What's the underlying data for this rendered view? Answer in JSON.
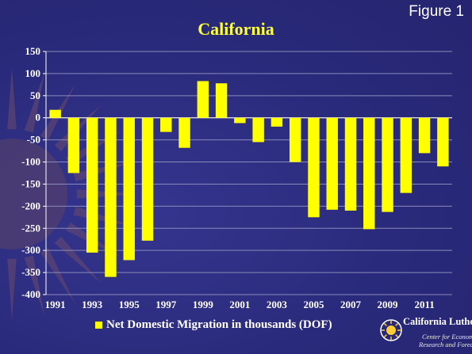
{
  "figure_label": "Figure 1",
  "colors": {
    "background": "#2b2b7e",
    "bar": "#ffff00",
    "title": "#ffff33",
    "grid": "#8a8ab8",
    "text": "#ffffff"
  },
  "logo": {
    "name": "California Lutheran",
    "line1": "Center for Economic",
    "line2": "Research and Forecasting"
  },
  "chart_data": {
    "type": "bar",
    "title": "California",
    "xlabel": "",
    "ylabel": "",
    "ylim": [
      -400,
      150
    ],
    "yticks": [
      150,
      100,
      50,
      0,
      -50,
      -100,
      -150,
      -200,
      -250,
      -300,
      -350,
      -400
    ],
    "categories": [
      "1991",
      "1992",
      "1993",
      "1994",
      "1995",
      "1996",
      "1997",
      "1998",
      "1999",
      "2000",
      "2001",
      "2002",
      "2003",
      "2004",
      "2005",
      "2006",
      "2007",
      "2008",
      "2009",
      "2010",
      "2011",
      "2012"
    ],
    "x_tick_labels": [
      "1991",
      "1993",
      "1995",
      "1997",
      "1999",
      "2001",
      "2003",
      "2005",
      "2007",
      "2009",
      "2011"
    ],
    "series": [
      {
        "name": "Net Domestic Migration in thousands (DOF)",
        "values": [
          18,
          -125,
          -305,
          -360,
          -322,
          -278,
          -32,
          -68,
          83,
          78,
          -12,
          -55,
          -20,
          -100,
          -225,
          -208,
          -210,
          -252,
          -213,
          -170,
          -80,
          -110
        ]
      }
    ],
    "grid": true,
    "legend": "bottom"
  }
}
